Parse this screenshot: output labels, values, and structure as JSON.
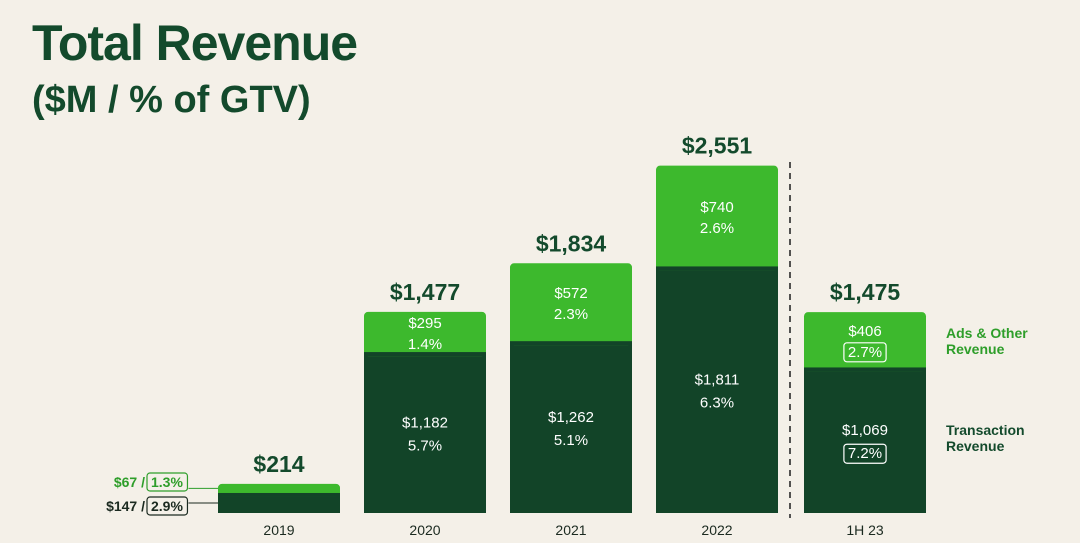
{
  "title": "Total Revenue",
  "subtitle": "($M / % of GTV)",
  "colors": {
    "transaction": "#124428",
    "ads": "#3db92d",
    "text_dark": "#134a2c",
    "ads_text": "#2e9e2a"
  },
  "chart_data": {
    "type": "bar",
    "stacked": true,
    "categories": [
      "2019",
      "2020",
      "2021",
      "2022",
      "1H 23"
    ],
    "totals": [
      "$214",
      "$1,477",
      "$1,834",
      "$2,551",
      "$1,475"
    ],
    "series": [
      {
        "name": "Transaction Revenue",
        "values": [
          147,
          1182,
          1262,
          1811,
          1069
        ],
        "labels": [
          "$147",
          "$1,182",
          "$1,262",
          "$1,811",
          "$1,069"
        ],
        "pct_gtv": [
          "2.9%",
          "5.7%",
          "5.1%",
          "6.3%",
          "7.2%"
        ]
      },
      {
        "name": "Ads & Other Revenue",
        "values": [
          67,
          295,
          572,
          740,
          406
        ],
        "labels": [
          "$67",
          "$295",
          "$572",
          "$740",
          "$406"
        ],
        "pct_gtv": [
          "1.3%",
          "1.4%",
          "2.3%",
          "2.6%",
          "2.7%"
        ]
      }
    ],
    "legend": {
      "ads": [
        "Ads & Other",
        "Revenue"
      ],
      "transaction": [
        "Transaction",
        "Revenue"
      ]
    },
    "side_labels_2019": {
      "ads_value": "$67",
      "ads_pct": "1.3%",
      "tx_value": "$147",
      "tx_pct": "2.9%",
      "separator": "/"
    },
    "ylim": [
      0,
      2600
    ],
    "boxed_pct_categories": [
      "1H 23"
    ]
  }
}
